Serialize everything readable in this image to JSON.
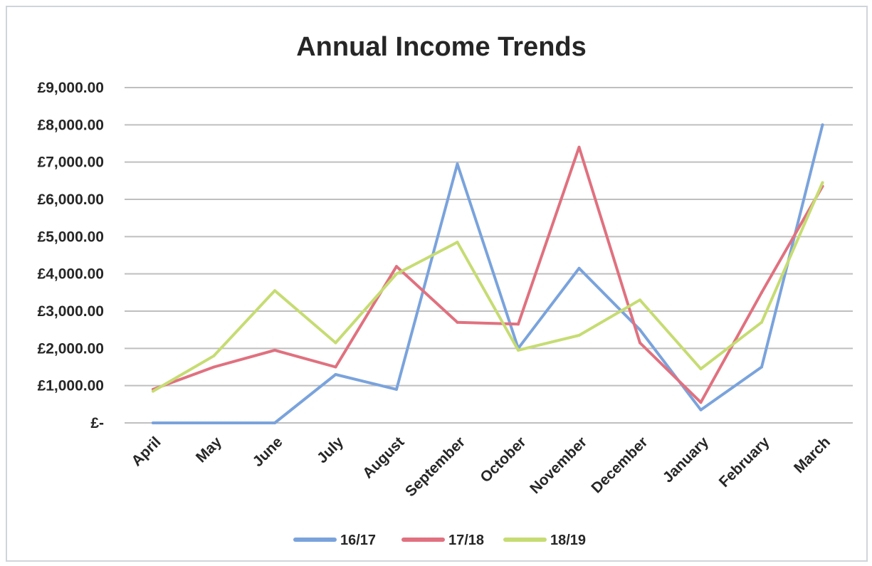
{
  "chart_data": {
    "type": "line",
    "title": "Annual Income Trends",
    "xlabel": "",
    "ylabel": "",
    "ylim": [
      0,
      9000
    ],
    "yticks": [
      {
        "value": 0,
        "label": "£-"
      },
      {
        "value": 1000,
        "label": "£1,000.00"
      },
      {
        "value": 2000,
        "label": "£2,000.00"
      },
      {
        "value": 3000,
        "label": "£3,000.00"
      },
      {
        "value": 4000,
        "label": "£4,000.00"
      },
      {
        "value": 5000,
        "label": "£5,000.00"
      },
      {
        "value": 6000,
        "label": "£6,000.00"
      },
      {
        "value": 7000,
        "label": "£7,000.00"
      },
      {
        "value": 8000,
        "label": "£8,000.00"
      },
      {
        "value": 9000,
        "label": "£9,000.00"
      }
    ],
    "categories": [
      "April",
      "May",
      "June",
      "July",
      "August",
      "September",
      "October",
      "November",
      "December",
      "January",
      "February",
      "March"
    ],
    "grid": true,
    "legend_position": "bottom",
    "series": [
      {
        "name": "16/17",
        "color": "#7aa3dc",
        "values": [
          0,
          0,
          0,
          1300,
          900,
          6950,
          2000,
          4150,
          2500,
          350,
          1500,
          8000
        ]
      },
      {
        "name": "17/18",
        "color": "#e0717f",
        "values": [
          900,
          1500,
          1950,
          1500,
          4200,
          2700,
          2650,
          7400,
          2150,
          550,
          3500,
          6350
        ]
      },
      {
        "name": "18/19",
        "color": "#c6dc73",
        "values": [
          850,
          1800,
          3550,
          2150,
          4000,
          4850,
          1950,
          2350,
          3300,
          1450,
          2700,
          6450
        ]
      }
    ]
  }
}
